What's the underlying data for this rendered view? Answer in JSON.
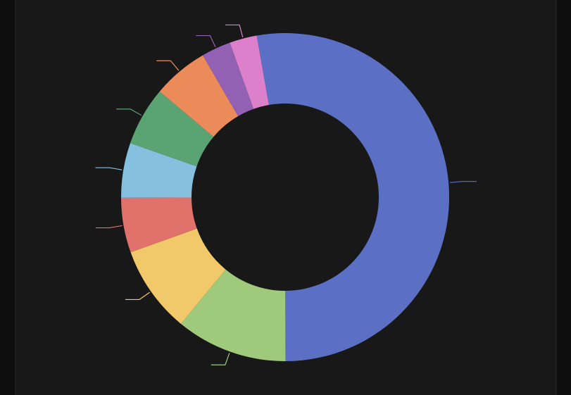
{
  "chart_data": {
    "type": "donut",
    "categories": [
      null,
      null,
      null,
      null,
      null,
      null,
      null,
      null,
      null
    ],
    "values": [
      52.8,
      11.0,
      8.6,
      5.4,
      5.4,
      5.8,
      5.5,
      2.9,
      2.7
    ],
    "colors": [
      "#5b70c4",
      "#9fca7c",
      "#f2c96a",
      "#e0716b",
      "#86c0df",
      "#5aa372",
      "#eb8b5a",
      "#9361b3",
      "#dc80cc"
    ]
  }
}
